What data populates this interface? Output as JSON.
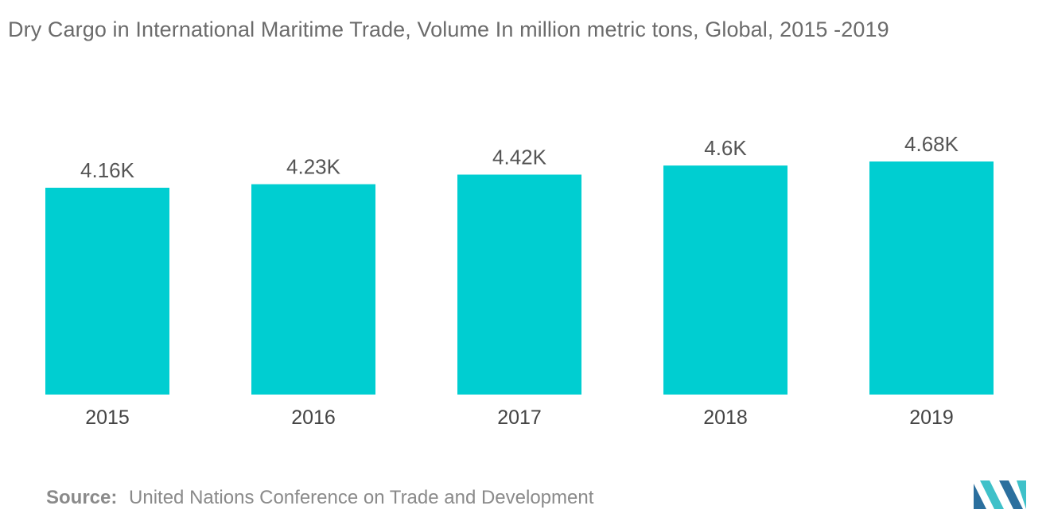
{
  "colors": {
    "bar": "#00CED1",
    "title": "#6b6b6b",
    "label": "#555555",
    "axis": "#444444",
    "source": "#8a8a8a",
    "logo_dark": "#2b6f9e",
    "logo_light": "#3fc1c9"
  },
  "source": {
    "label": "Source:",
    "text": "United Nations Conference on Trade and Development"
  },
  "logo": {
    "icon": "mordor-intelligence-logo-icon"
  },
  "chart_data": {
    "type": "bar",
    "title": "Dry Cargo in International Maritime Trade, Volume In million metric tons, Global, 2015 -2019",
    "categories": [
      "2015",
      "2016",
      "2017",
      "2018",
      "2019"
    ],
    "values": [
      4160,
      4230,
      4420,
      4600,
      4680
    ],
    "data_labels": [
      "4.16K",
      "4.23K",
      "4.42K",
      "4.6K",
      "4.68K"
    ],
    "xlabel": "",
    "ylabel": "",
    "ylim": [
      0,
      5000
    ],
    "grid": false,
    "legend": "none"
  }
}
